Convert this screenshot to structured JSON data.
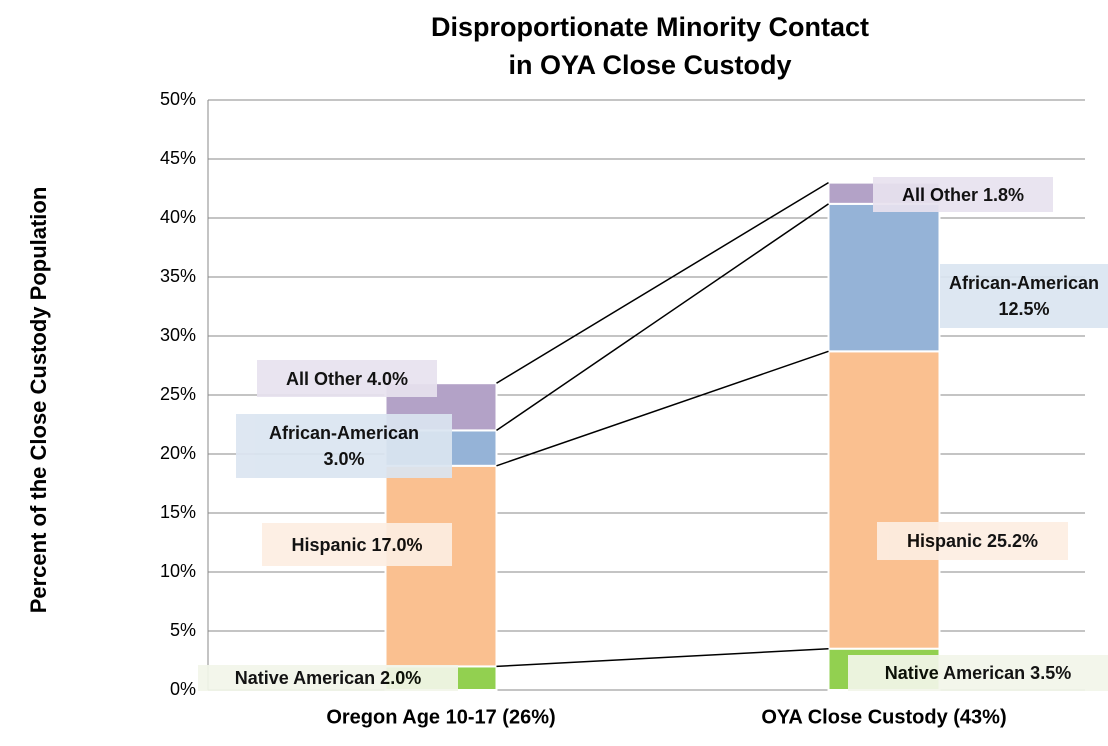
{
  "chart_data": {
    "type": "stacked_bar",
    "title": "Disproportionate Minority Contact\nin OYA Close Custody",
    "y_label": "Percent of the Close Custody Population",
    "categories": [
      "Oregon Age 10-17 (26%)",
      "OYA Close Custody (43%)"
    ],
    "series": [
      {
        "name": "Native American",
        "color": "#92d050",
        "label_bg": "#f3f6ea",
        "values": [
          2.0,
          3.5
        ],
        "value_labels": [
          "Native American 2.0%",
          "Native American 3.5%"
        ]
      },
      {
        "name": "Hispanic",
        "color": "#fac090",
        "label_bg": "#fdeee2",
        "values": [
          17.0,
          25.2
        ],
        "value_labels": [
          "Hispanic 17.0%",
          "Hispanic 25.2%"
        ]
      },
      {
        "name": "African-American",
        "color": "#95b3d7",
        "label_bg": "#dbe5f1",
        "values": [
          3.0,
          12.5
        ],
        "value_labels": [
          "African-American\n3.0%",
          "African-American\n12.5%"
        ]
      },
      {
        "name": "All Other",
        "color": "#b3a2c7",
        "label_bg": "#e8e2ef",
        "values": [
          4.0,
          1.8
        ],
        "value_labels": [
          "All Other 4.0%",
          "All Other 1.8%"
        ]
      }
    ],
    "ylim": [
      0,
      50
    ],
    "yticks": [
      {
        "value": 0,
        "label": "0%"
      },
      {
        "value": 5,
        "label": "5%"
      },
      {
        "value": 10,
        "label": "10%"
      },
      {
        "value": 15,
        "label": "15%"
      },
      {
        "value": 20,
        "label": "20%"
      },
      {
        "value": 25,
        "label": "25%"
      },
      {
        "value": 30,
        "label": "30%"
      },
      {
        "value": 35,
        "label": "35%"
      },
      {
        "value": 40,
        "label": "40%"
      },
      {
        "value": 45,
        "label": "45%"
      },
      {
        "value": 50,
        "label": "50%"
      }
    ],
    "grid": true
  }
}
